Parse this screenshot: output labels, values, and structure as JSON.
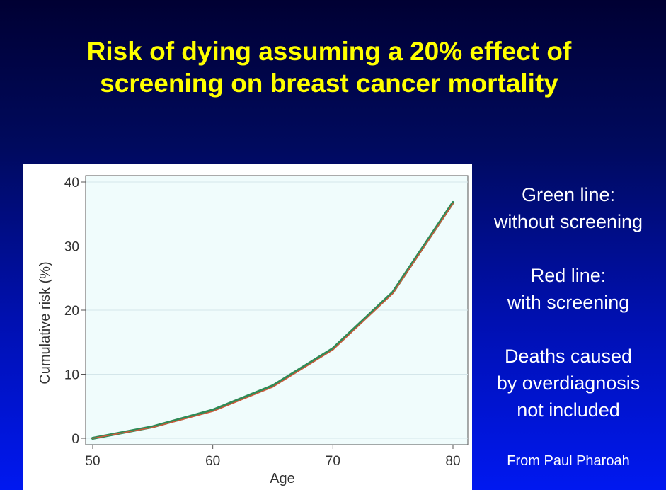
{
  "title": {
    "line1": "Risk of dying assuming a 20% effect of",
    "line2": "screening on breast cancer mortality"
  },
  "notes": {
    "green": [
      "Green line:",
      "without screening"
    ],
    "red": [
      "Red line:",
      "with screening"
    ],
    "deaths": [
      "Deaths caused",
      "by overdiagnosis",
      "not included"
    ]
  },
  "source": "From Paul Pharoah",
  "colors": {
    "title": "#ffff00",
    "green_line": "#2e8b57",
    "red_line": "#cd5a3c",
    "plot_background": "#f0fcfc"
  },
  "chart_data": {
    "type": "line",
    "title": "",
    "xlabel": "Age",
    "ylabel": "Cumulative risk (%)",
    "x": [
      50,
      55,
      60,
      65,
      70,
      75,
      80
    ],
    "xticks": [
      50,
      60,
      70,
      80
    ],
    "yticks": [
      0,
      10,
      20,
      30,
      40
    ],
    "xlim": [
      50,
      80
    ],
    "ylim": [
      0,
      40
    ],
    "grid": true,
    "legend": "none",
    "series": [
      {
        "name": "without screening",
        "color": "green",
        "values": [
          0,
          1.8,
          4.4,
          8.2,
          14.0,
          22.8,
          36.8
        ]
      },
      {
        "name": "with screening",
        "color": "red",
        "values": [
          0,
          1.7,
          4.2,
          8.0,
          13.8,
          22.6,
          36.6
        ]
      }
    ]
  }
}
